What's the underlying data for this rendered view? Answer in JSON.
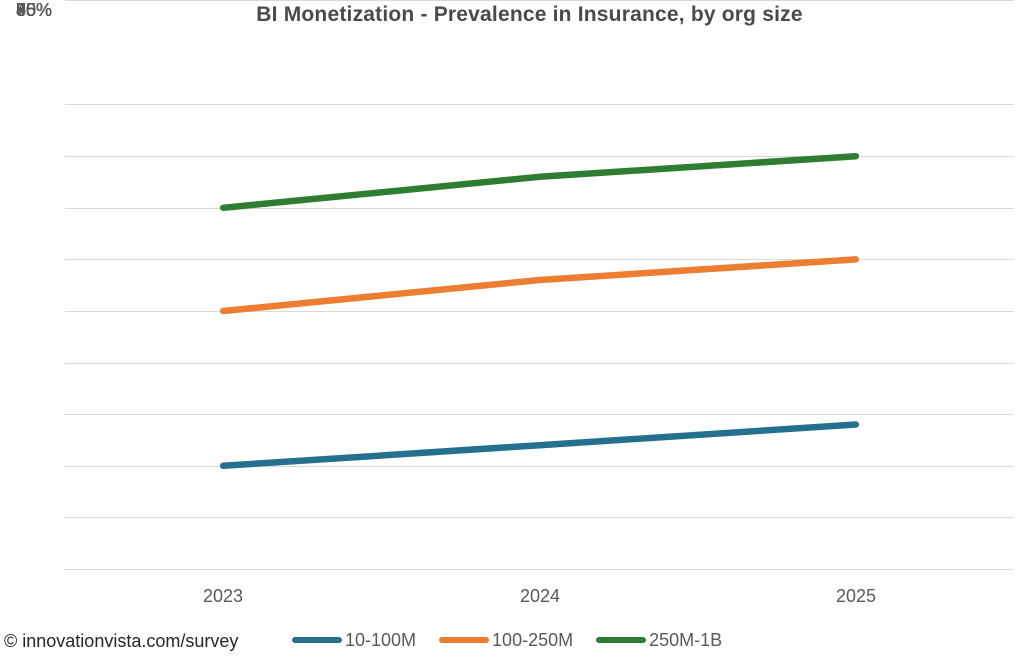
{
  "title": "BI Monetization - Prevalence in Insurance, by org size",
  "footer": {
    "credit": "© innovationvista.com/survey"
  },
  "colors": {
    "grid": "#d9d9d9",
    "axis_text": "#595959",
    "title_text": "#4a4a4a",
    "footer_text": "#262626"
  },
  "chart_data": {
    "type": "line",
    "title": "BI Monetization - Prevalence in Insurance, by org size",
    "x": [
      "2023",
      "2024",
      "2025"
    ],
    "series": [
      {
        "name": "10-100M",
        "color": "#26708f",
        "values": [
          50,
          52,
          54
        ]
      },
      {
        "name": "100-250M",
        "color": "#ed7d31",
        "values": [
          65,
          68,
          70
        ]
      },
      {
        "name": "250M-1B",
        "color": "#2e7d32",
        "values": [
          75,
          78,
          80
        ]
      }
    ],
    "xlabel": "",
    "ylabel": "",
    "ylim": [
      40,
      90
    ],
    "ytick_step": 5,
    "yticks": [
      "90%",
      "85%",
      "80%",
      "75%",
      "70%",
      "65%",
      "60%",
      "55%",
      "50%",
      "45%",
      "40%"
    ],
    "grid": "horizontal",
    "legend_position": "bottom",
    "line_width": 6.5
  }
}
